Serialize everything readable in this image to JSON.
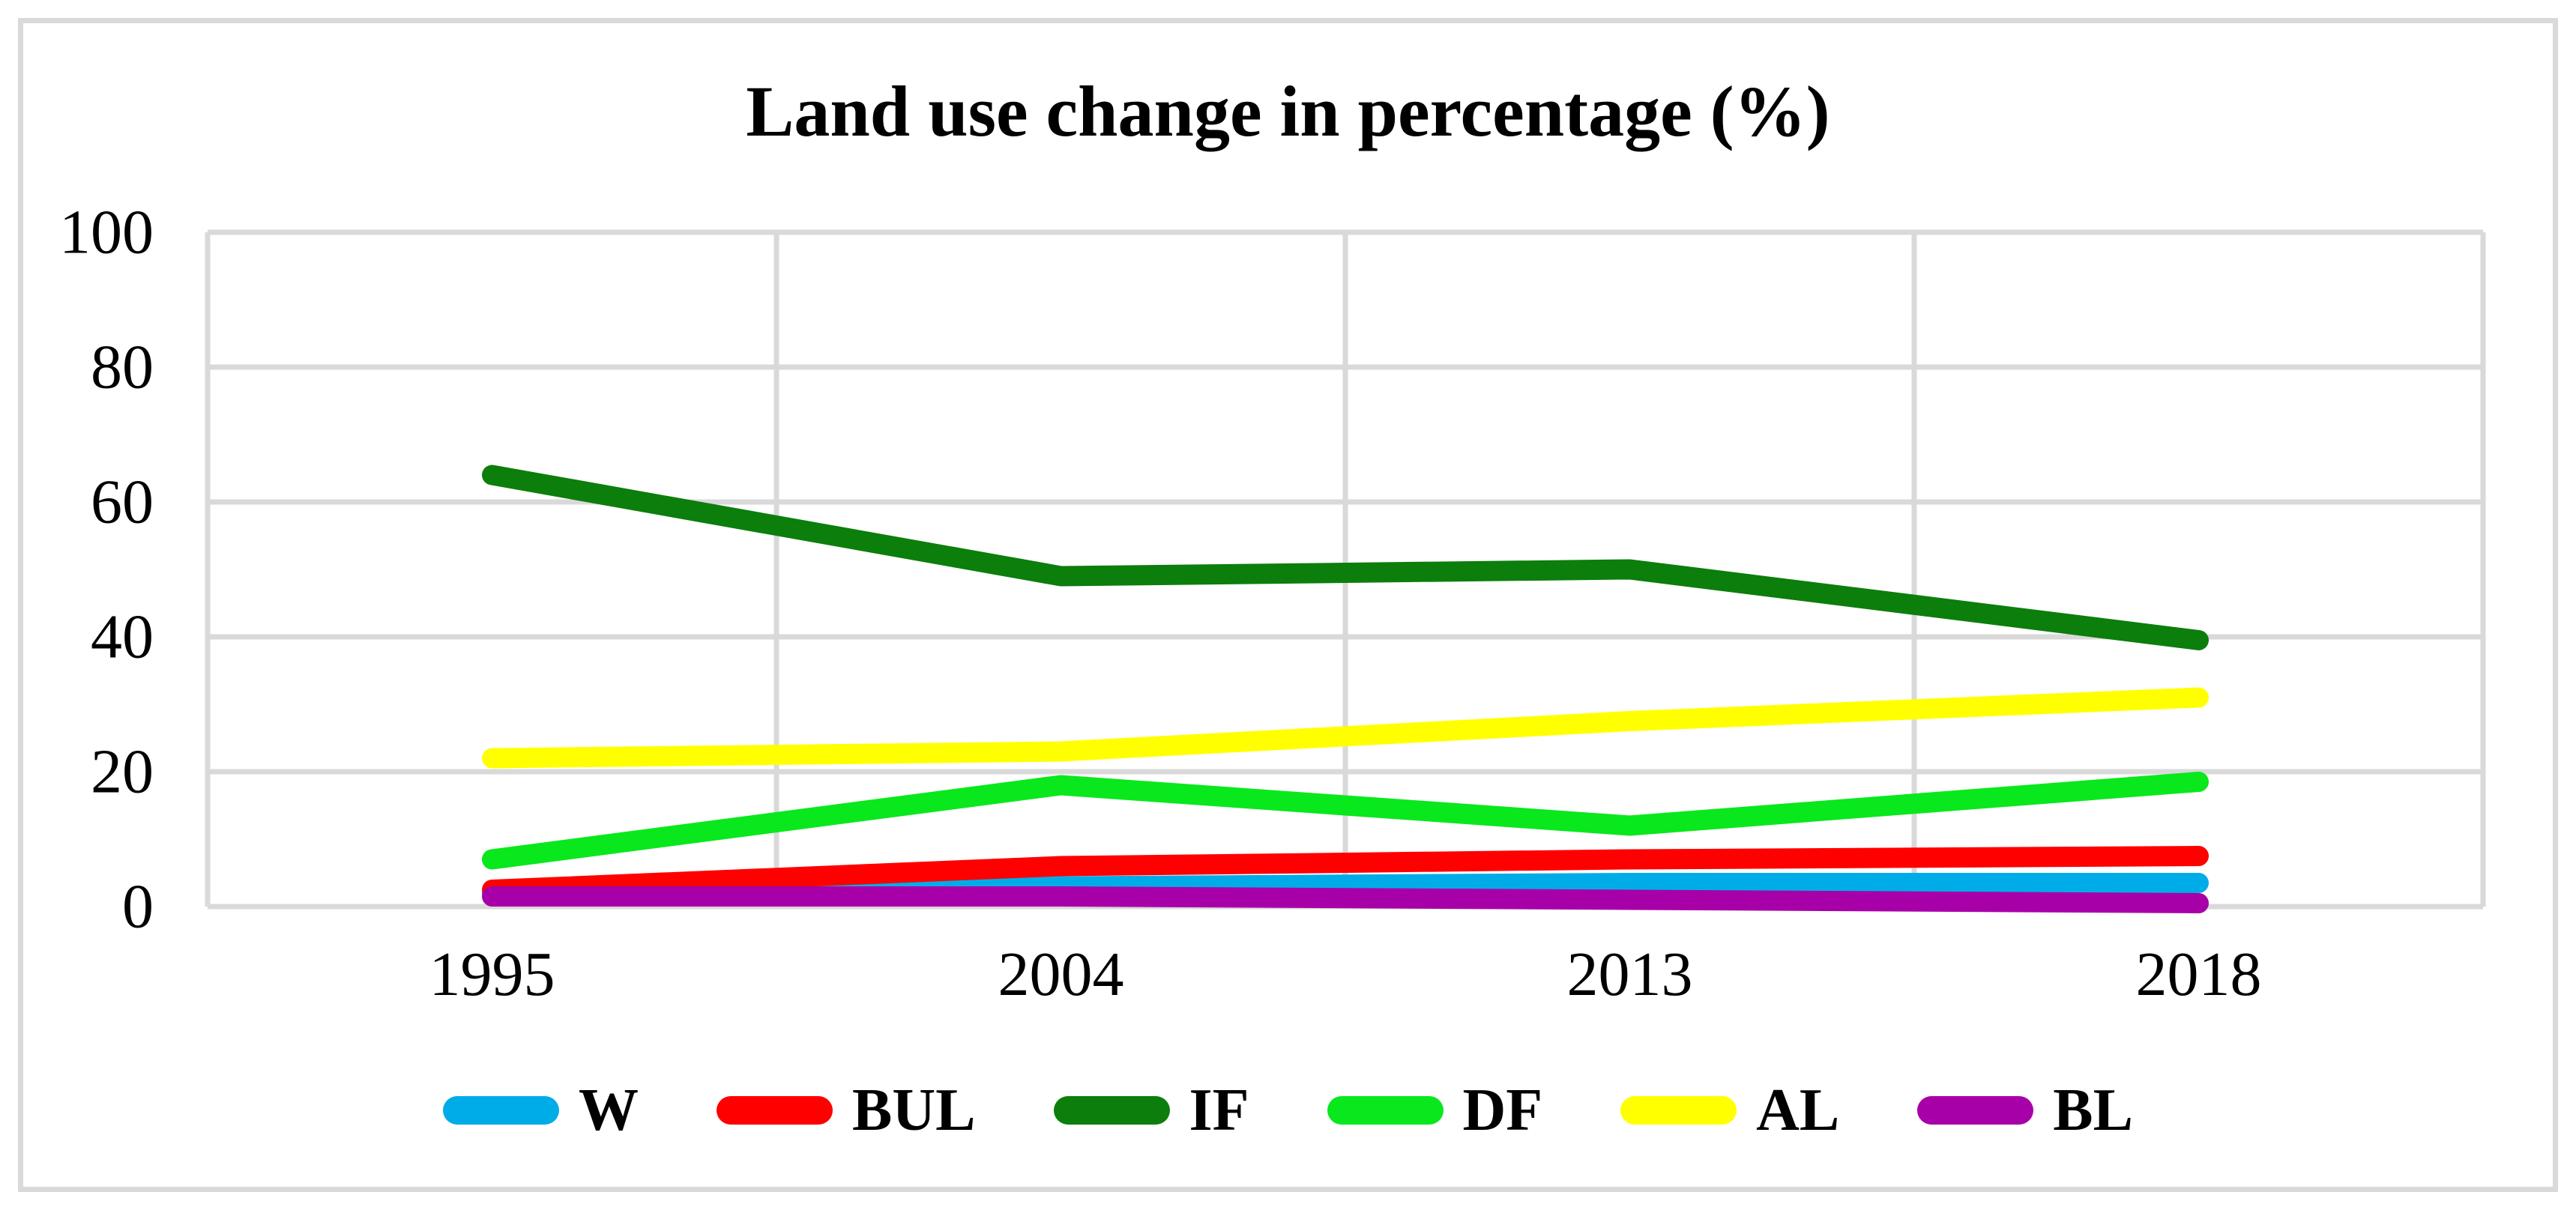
{
  "chart": {
    "title": "Land use change in percentage (%)"
  },
  "chart_data": {
    "type": "line",
    "title": "Land use change in percentage (%)",
    "xlabel": "",
    "ylabel": "",
    "categories": [
      "1995",
      "2004",
      "2013",
      "2018"
    ],
    "series": [
      {
        "name": "W",
        "color": "#00ACE8",
        "values": [
          2,
          3,
          3.5,
          3.5
        ]
      },
      {
        "name": "BUL",
        "color": "#FF0000",
        "values": [
          2.5,
          6,
          7,
          7.5
        ]
      },
      {
        "name": "IF",
        "color": "#0B7E0B",
        "values": [
          64,
          49,
          50,
          39.5
        ]
      },
      {
        "name": "DF",
        "color": "#08E81C",
        "values": [
          7,
          18,
          12,
          18.5
        ]
      },
      {
        "name": "AL",
        "color": "#FFFF00",
        "values": [
          22,
          23,
          27.5,
          31
        ]
      },
      {
        "name": "BL",
        "color": "#A800A8",
        "values": [
          1.5,
          1.5,
          1,
          0.5
        ]
      }
    ],
    "ylim": [
      0,
      100
    ],
    "yticks": [
      0,
      20,
      40,
      60,
      80,
      100
    ],
    "grid": true,
    "gridline_color": "#D9D9D9",
    "legend_position": "bottom",
    "background": "#FFFFFF"
  }
}
